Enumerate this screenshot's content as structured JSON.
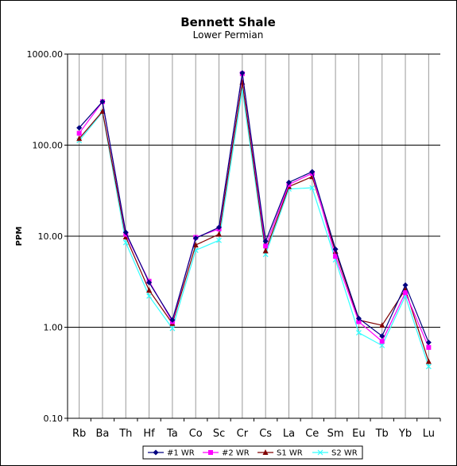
{
  "chart_data": {
    "type": "line",
    "title": "Bennett Shale",
    "subtitle": "Lower Permian",
    "ylabel": "PPM",
    "xlabel": "",
    "y_scale": "log",
    "ylim": [
      0.1,
      1000
    ],
    "y_ticks": [
      0.1,
      1,
      10,
      100,
      1000
    ],
    "y_tick_labels": [
      "0.10",
      "1.00",
      "10.00",
      "100.00",
      "1000.00"
    ],
    "categories": [
      "Rb",
      "Ba",
      "Th",
      "Hf",
      "Ta",
      "Co",
      "Sc",
      "Cr",
      "Cs",
      "La",
      "Ce",
      "Sm",
      "Eu",
      "Tb",
      "Yb",
      "Lu"
    ],
    "grid": "horizontal and vertical",
    "legend_position": "bottom",
    "series": [
      {
        "name": "#1 WR",
        "color": "#000080",
        "marker": "diamond",
        "values": [
          155,
          300,
          11,
          3.1,
          1.2,
          9.5,
          12.5,
          620,
          8.8,
          39,
          51,
          7.2,
          1.25,
          0.8,
          2.9,
          0.68
        ]
      },
      {
        "name": "#2 WR",
        "color": "#ff00ff",
        "marker": "square",
        "values": [
          135,
          300,
          10.5,
          3.2,
          1.15,
          9.7,
          12,
          610,
          7.8,
          37,
          49,
          6.0,
          1.15,
          0.7,
          2.4,
          0.6
        ]
      },
      {
        "name": "S1 WR",
        "color": "#800000",
        "marker": "triangle",
        "values": [
          118,
          235,
          9.8,
          2.55,
          1.1,
          8.0,
          10.5,
          490,
          6.9,
          35,
          45,
          6.8,
          1.2,
          1.05,
          2.6,
          0.42
        ]
      },
      {
        "name": "S2 WR",
        "color": "#33ffff",
        "marker": "x",
        "values": [
          112,
          230,
          8.5,
          2.2,
          0.97,
          7.0,
          9.0,
          410,
          6.3,
          33,
          34,
          5.5,
          0.87,
          0.63,
          2.2,
          0.37
        ]
      }
    ]
  }
}
